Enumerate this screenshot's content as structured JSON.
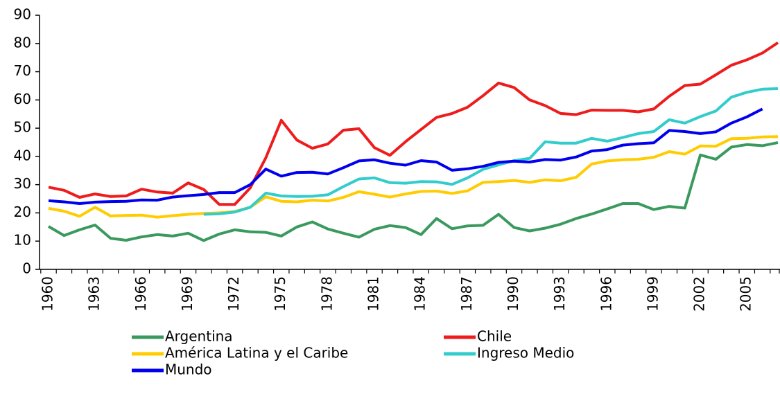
{
  "chart_data": {
    "type": "line",
    "categories": [
      "1960",
      null,
      null,
      "1963",
      null,
      null,
      "1966",
      null,
      null,
      "1969",
      null,
      null,
      "1972",
      null,
      null,
      "1975",
      null,
      null,
      "1978",
      null,
      null,
      "1981",
      null,
      null,
      "1984",
      null,
      null,
      "1987",
      null,
      null,
      "1990",
      null,
      null,
      "1993",
      null,
      null,
      "1996",
      null,
      null,
      "1999",
      null,
      null,
      "2002",
      null,
      null,
      "2005",
      null,
      null
    ],
    "ylim": [
      0,
      90
    ],
    "yticks": [
      0,
      10,
      20,
      30,
      40,
      50,
      60,
      70,
      80,
      90
    ],
    "grid": false,
    "legend": "bottom",
    "series": [
      {
        "name": "Argentina",
        "color": "#3a9a5e",
        "values": [
          15.2,
          12,
          14,
          15.7,
          11,
          10.3,
          11.5,
          12.3,
          11.8,
          12.8,
          10.2,
          12.5,
          14,
          13.3,
          13.1,
          11.8,
          15,
          16.8,
          14.3,
          12.8,
          11.4,
          14.2,
          15.5,
          14.8,
          12.3,
          18,
          14.4,
          15.4,
          15.6,
          19.5,
          14.8,
          13.6,
          14.6,
          16,
          18,
          19.6,
          21.4,
          23.3,
          23.3,
          21.2,
          22.3,
          21.7,
          40.5,
          39,
          43.3,
          44.2,
          43.8,
          44.9
        ]
      },
      {
        "name": "Chile",
        "color": "#ee1c1c",
        "values": [
          29.1,
          28,
          25.5,
          26.7,
          25.8,
          26,
          28.4,
          27.4,
          27,
          30.6,
          28.3,
          23,
          23,
          28.9,
          39.5,
          52.8,
          45.8,
          42.9,
          44.4,
          49.3,
          49.8,
          43.1,
          40.4,
          45.2,
          49.5,
          53.8,
          55.2,
          57.4,
          61.5,
          66,
          64.4,
          60,
          58,
          55.2,
          54.8,
          56.4,
          56.3,
          56.3,
          55.8,
          56.8,
          61.3,
          65.1,
          65.6,
          68.9,
          72.3,
          74.2,
          76.6,
          80.3
        ]
      },
      {
        "name": "América Latina y el Caribe",
        "color": "#ffcc00",
        "values": [
          21.6,
          20.6,
          18.8,
          22,
          18.9,
          19.1,
          19.2,
          18.5,
          19,
          19.5,
          19.8,
          20,
          20.5,
          22,
          25.7,
          24.1,
          23.9,
          24.5,
          24.2,
          25.5,
          27.5,
          26.6,
          25.6,
          26.7,
          27.6,
          27.7,
          26.9,
          27.8,
          30.8,
          31.1,
          31.5,
          30.8,
          31.7,
          31.4,
          32.6,
          37.3,
          38.4,
          38.8,
          39,
          39.7,
          41.7,
          40.8,
          43.7,
          43.6,
          46.3,
          46.4,
          46.9,
          47
        ]
      },
      {
        "name": "Ingreso Medio",
        "color": "#33cccc",
        "values": [
          null,
          null,
          null,
          null,
          null,
          null,
          null,
          null,
          null,
          null,
          19.5,
          19.7,
          20.3,
          22,
          27,
          26,
          25.8,
          25.9,
          26.4,
          29.3,
          32,
          32.4,
          30.7,
          30.5,
          31.1,
          31,
          30.1,
          32.4,
          35.4,
          37,
          38.5,
          39.3,
          45.2,
          44.7,
          44.7,
          46.4,
          45.4,
          46.7,
          48.1,
          48.8,
          53,
          51.8,
          54.1,
          56.1,
          61,
          62.7,
          63.8,
          64
        ]
      },
      {
        "name": "Mundo",
        "color": "#0000ee",
        "values": [
          24.3,
          23.9,
          23.3,
          23.8,
          24,
          24.1,
          24.6,
          24.5,
          25.6,
          26.1,
          26.5,
          27.2,
          27.2,
          30,
          35.5,
          33,
          34.3,
          34.4,
          33.8,
          36,
          38.4,
          38.8,
          37.6,
          36.9,
          38.5,
          38,
          35.1,
          35.6,
          36.5,
          37.9,
          38.3,
          38,
          38.9,
          38.7,
          39.8,
          41.9,
          42.4,
          44,
          44.5,
          44.8,
          49.2,
          48.8,
          48.1,
          48.7,
          51.8,
          54,
          56.8,
          null
        ]
      }
    ]
  }
}
